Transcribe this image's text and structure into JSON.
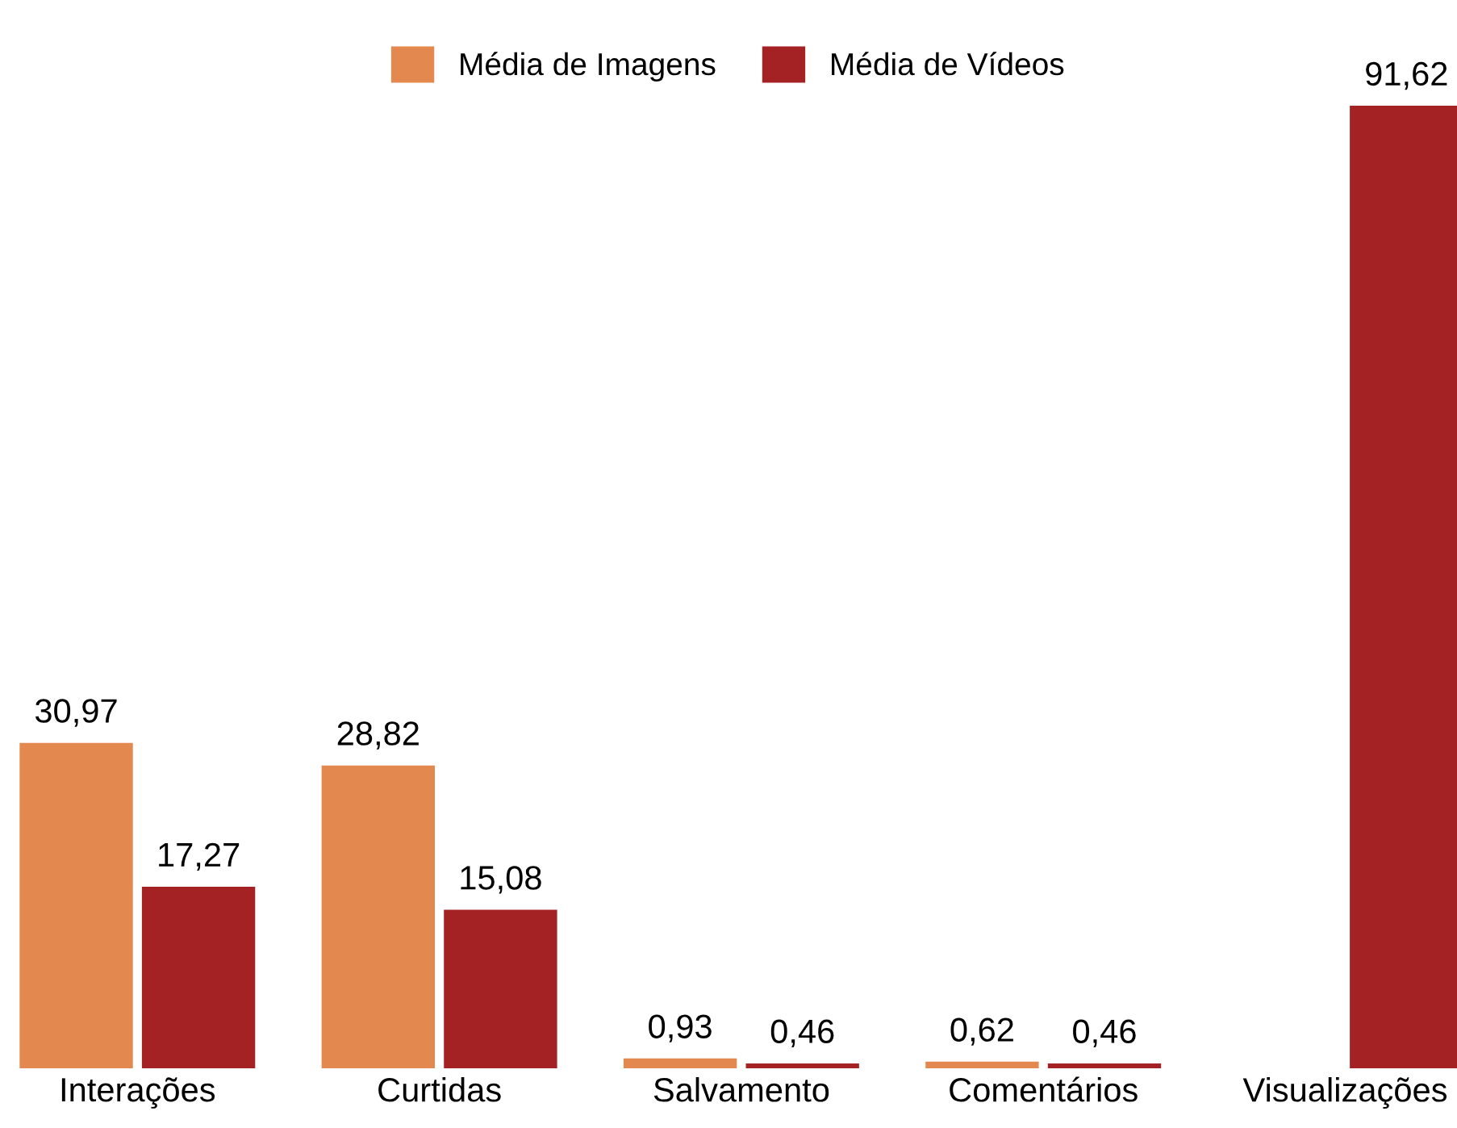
{
  "chart_data": {
    "type": "bar",
    "categories": [
      "Interações",
      "Curtidas",
      "Salvamento",
      "Comentários",
      "Visualizações"
    ],
    "series": [
      {
        "name": "Média de Imagens",
        "color": "#e3894f",
        "values": [
          30.97,
          28.82,
          0.93,
          0.62,
          null
        ],
        "value_labels": [
          "30,97",
          "28,82",
          "0,93",
          "0,62",
          null
        ]
      },
      {
        "name": "Média de Vídeos",
        "color": "#a52224",
        "values": [
          17.27,
          15.08,
          0.46,
          0.46,
          91.62
        ],
        "value_labels": [
          "17,27",
          "15,08",
          "0,46",
          "0,46",
          "91,62"
        ]
      }
    ],
    "tick_labels": "x",
    "grid": false,
    "legend": "top"
  }
}
